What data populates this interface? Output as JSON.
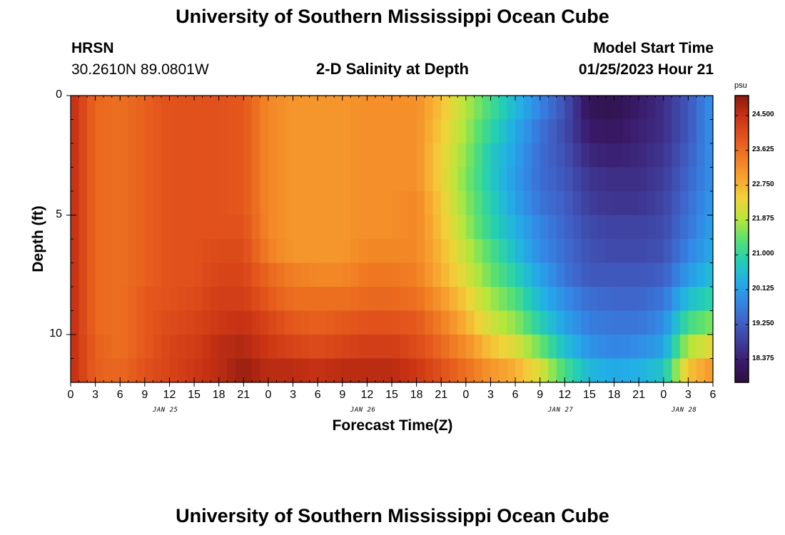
{
  "header": {
    "title": "University of Southern Mississippi Ocean Cube",
    "station": "HRSN",
    "coords": "30.2610N  89.0801W",
    "plot_title": "2-D Salinity at Depth",
    "model_label": "Model Start Time",
    "model_time": "01/25/2023 Hour 21"
  },
  "footer": {
    "title": "University of Southern Mississippi Ocean Cube"
  },
  "chart_data": {
    "type": "heatmap",
    "title": "2-D Salinity at Depth",
    "xlabel": "Forecast Time(Z)",
    "ylabel": "Depth (ft)",
    "x_unit": "hours from 01/25/2023 00Z",
    "xlim": [
      0,
      78
    ],
    "ylim": [
      12,
      0
    ],
    "x_ticks": [
      0,
      3,
      6,
      9,
      12,
      15,
      18,
      21,
      24,
      27,
      30,
      33,
      36,
      39,
      42,
      45,
      48,
      51,
      54,
      57,
      60,
      63,
      66,
      69,
      72,
      75,
      78
    ],
    "x_tick_labels": [
      "0",
      "3",
      "6",
      "9",
      "12",
      "15",
      "18",
      "21",
      "0",
      "3",
      "6",
      "9",
      "12",
      "15",
      "18",
      "21",
      "0",
      "3",
      "6",
      "9",
      "12",
      "15",
      "18",
      "21",
      "0",
      "3",
      "6"
    ],
    "y_ticks": [
      0,
      5,
      10
    ],
    "y_tick_labels": [
      "0",
      "5",
      "10"
    ],
    "day_labels": [
      {
        "label": "JAN 25",
        "x": 11.5
      },
      {
        "label": "JAN 26",
        "x": 35.5
      },
      {
        "label": "JAN 27",
        "x": 59.5
      },
      {
        "label": "JAN 28",
        "x": 74.5
      }
    ],
    "colorbar": {
      "unit": "psu",
      "range": [
        17.8,
        25.0
      ],
      "ticks": [
        24.5,
        23.625,
        22.75,
        21.875,
        21.0,
        20.125,
        19.25,
        18.375
      ],
      "tick_labels": [
        "24.500",
        "23.625",
        "22.750",
        "21.875",
        "21.000",
        "20.125",
        "19.250",
        "18.375"
      ],
      "colors": [
        "#2b1040",
        "#3a1a6a",
        "#3f3e9c",
        "#3f62c8",
        "#3389e6",
        "#22afe6",
        "#24cfb2",
        "#5ae070",
        "#b8e63a",
        "#f2d23a",
        "#f7a330",
        "#f07a22",
        "#e2531c",
        "#c83214",
        "#8e1b10"
      ]
    },
    "depth_levels": [
      0,
      1,
      2,
      3,
      4,
      5,
      6,
      7,
      8,
      9,
      10,
      11
    ],
    "profiles": [
      {
        "time": 0,
        "values": [
          24.6,
          24.6,
          24.6,
          24.6,
          24.6,
          24.6,
          24.6,
          24.6,
          24.6,
          24.6,
          24.6,
          24.6
        ]
      },
      {
        "time": 3,
        "values": [
          23.7,
          23.7,
          23.7,
          23.7,
          23.7,
          23.7,
          23.7,
          23.7,
          23.7,
          23.7,
          23.8,
          23.8
        ]
      },
      {
        "time": 6,
        "values": [
          23.6,
          23.6,
          23.6,
          23.6,
          23.6,
          23.6,
          23.6,
          23.6,
          23.6,
          23.6,
          23.6,
          23.7
        ]
      },
      {
        "time": 9,
        "values": [
          23.8,
          23.8,
          23.8,
          23.8,
          23.8,
          23.8,
          23.8,
          23.8,
          23.9,
          23.9,
          23.9,
          24.0
        ]
      },
      {
        "time": 12,
        "values": [
          24.0,
          24.0,
          24.0,
          24.0,
          24.0,
          24.0,
          24.0,
          24.0,
          24.0,
          24.1,
          24.2,
          24.2
        ]
      },
      {
        "time": 15,
        "values": [
          24.0,
          24.0,
          24.0,
          24.0,
          24.0,
          24.0,
          24.0,
          24.0,
          24.1,
          24.2,
          24.3,
          24.4
        ]
      },
      {
        "time": 18,
        "values": [
          24.0,
          24.0,
          24.0,
          24.0,
          24.0,
          24.0,
          24.1,
          24.2,
          24.3,
          24.4,
          24.6,
          24.6
        ]
      },
      {
        "time": 21,
        "values": [
          23.9,
          23.9,
          23.9,
          23.9,
          23.9,
          24.0,
          24.1,
          24.2,
          24.3,
          24.5,
          24.7,
          24.9
        ]
      },
      {
        "time": 24,
        "values": [
          23.3,
          23.3,
          23.3,
          23.3,
          23.3,
          23.3,
          23.4,
          23.7,
          23.9,
          24.2,
          24.4,
          24.6
        ]
      },
      {
        "time": 27,
        "values": [
          23.1,
          23.1,
          23.1,
          23.1,
          23.1,
          23.1,
          23.1,
          23.4,
          23.6,
          23.9,
          24.2,
          24.6
        ]
      },
      {
        "time": 30,
        "values": [
          23.1,
          23.1,
          23.1,
          23.1,
          23.1,
          23.1,
          23.1,
          23.3,
          23.6,
          23.8,
          24.1,
          24.5
        ]
      },
      {
        "time": 33,
        "values": [
          23.1,
          23.1,
          23.1,
          23.1,
          23.1,
          23.1,
          23.1,
          23.3,
          23.6,
          23.9,
          24.2,
          24.6
        ]
      },
      {
        "time": 36,
        "values": [
          23.2,
          23.2,
          23.2,
          23.2,
          23.2,
          23.2,
          23.3,
          23.5,
          23.7,
          24.0,
          24.3,
          24.6
        ]
      },
      {
        "time": 39,
        "values": [
          23.2,
          23.2,
          23.2,
          23.2,
          23.2,
          23.2,
          23.3,
          23.5,
          23.7,
          24.0,
          24.3,
          24.6
        ]
      },
      {
        "time": 42,
        "values": [
          23.2,
          23.2,
          23.2,
          23.2,
          23.3,
          23.3,
          23.3,
          23.4,
          23.6,
          23.9,
          24.1,
          24.4
        ]
      },
      {
        "time": 45,
        "values": [
          22.6,
          22.5,
          22.4,
          22.4,
          22.5,
          22.6,
          22.7,
          22.8,
          23.1,
          23.4,
          23.7,
          24.0
        ]
      },
      {
        "time": 48,
        "values": [
          21.9,
          21.8,
          21.7,
          21.6,
          21.7,
          21.8,
          22.0,
          22.2,
          22.5,
          22.8,
          23.2,
          23.6
        ]
      },
      {
        "time": 51,
        "values": [
          21.2,
          21.0,
          20.8,
          20.8,
          20.9,
          21.0,
          21.3,
          21.5,
          21.8,
          22.1,
          22.6,
          23.1
        ]
      },
      {
        "time": 54,
        "values": [
          20.5,
          20.3,
          20.2,
          20.1,
          20.2,
          20.4,
          20.6,
          20.9,
          21.3,
          21.7,
          22.2,
          22.8
        ]
      },
      {
        "time": 57,
        "values": [
          19.8,
          19.6,
          19.5,
          19.5,
          19.6,
          19.8,
          19.9,
          20.2,
          20.5,
          20.9,
          21.5,
          22.2
        ]
      },
      {
        "time": 60,
        "values": [
          19.1,
          19.0,
          19.1,
          19.2,
          19.3,
          19.4,
          19.5,
          19.6,
          19.9,
          20.2,
          20.6,
          21.2
        ]
      },
      {
        "time": 63,
        "values": [
          18.1,
          18.3,
          18.5,
          18.7,
          18.8,
          19.0,
          19.1,
          19.2,
          19.5,
          19.7,
          20.0,
          20.5
        ]
      },
      {
        "time": 66,
        "values": [
          18.0,
          18.2,
          18.4,
          18.6,
          18.7,
          18.9,
          19.0,
          19.2,
          19.4,
          19.6,
          19.8,
          20.3
        ]
      },
      {
        "time": 69,
        "values": [
          18.3,
          18.4,
          18.5,
          18.6,
          18.7,
          18.9,
          19.0,
          19.2,
          19.4,
          19.6,
          19.9,
          20.4
        ]
      },
      {
        "time": 72,
        "values": [
          18.6,
          18.6,
          18.7,
          18.8,
          18.9,
          19.0,
          19.1,
          19.3,
          19.6,
          19.9,
          20.2,
          20.7
        ]
      },
      {
        "time": 75,
        "values": [
          19.2,
          19.2,
          19.3,
          19.4,
          19.5,
          19.6,
          19.8,
          20.1,
          20.6,
          21.2,
          21.9,
          22.6
        ]
      },
      {
        "time": 78,
        "values": [
          20.0,
          20.0,
          20.0,
          20.0,
          20.1,
          20.2,
          20.3,
          20.6,
          21.0,
          21.6,
          22.3,
          23.1
        ]
      }
    ]
  }
}
